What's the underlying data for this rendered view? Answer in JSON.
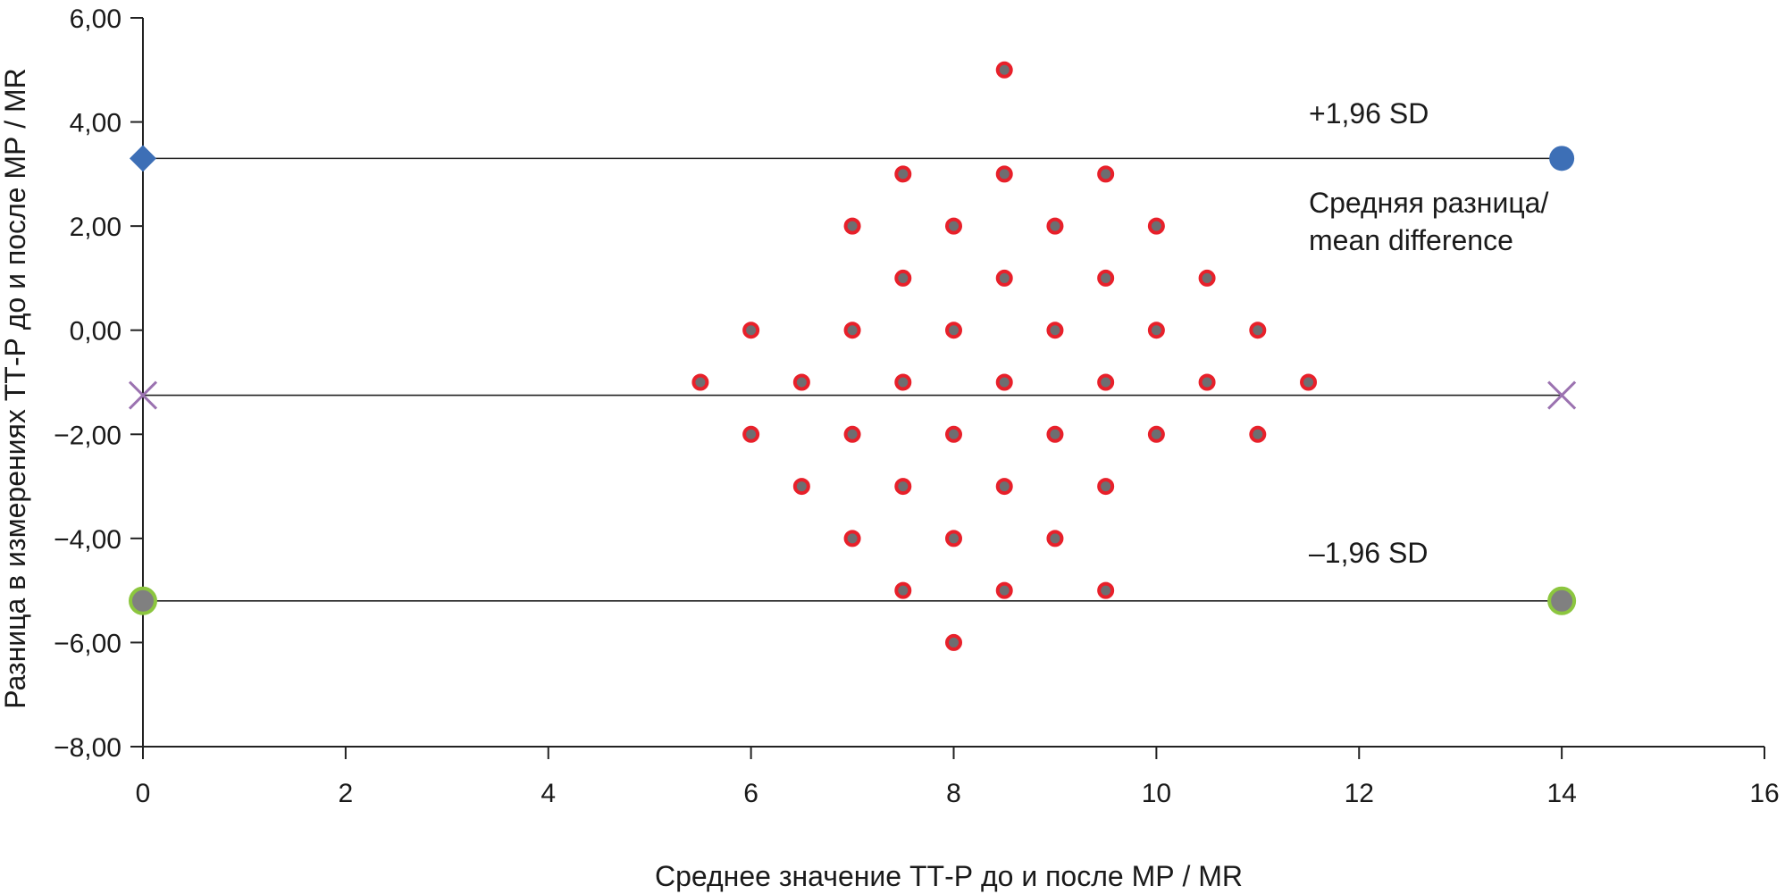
{
  "chart_data": {
    "type": "scatter",
    "title": "",
    "xlabel": "Среднее значение ТТ-Р до и после МР / MR",
    "ylabel": "Разница в измерениях ТТ-Р до и после МР / MR",
    "xlim": [
      0,
      16
    ],
    "ylim": [
      -8,
      6
    ],
    "x_ticks": [
      0,
      2,
      4,
      6,
      8,
      10,
      12,
      14,
      16
    ],
    "x_tick_labels": [
      "0",
      "2",
      "4",
      "6",
      "8",
      "10",
      "12",
      "14",
      "16"
    ],
    "y_ticks": [
      -8,
      -6,
      -4,
      -2,
      0,
      2,
      4,
      6
    ],
    "y_tick_labels": [
      "−8,00",
      "−6,00",
      "−4,00",
      "−2,00",
      "0,00",
      "2,00",
      "4,00",
      "6,00"
    ],
    "grid": false,
    "colors": {
      "point_fill": "#6d6e71",
      "point_stroke": "#e8202a",
      "upper_marker": "#3d6fb6",
      "mean_marker": "#9b72b0",
      "lower_marker_fill": "#808080",
      "lower_marker_stroke": "#8cc63f"
    },
    "points": [
      {
        "x": 8.5,
        "y": 5.0
      },
      {
        "x": 7.5,
        "y": 3.0
      },
      {
        "x": 8.5,
        "y": 3.0
      },
      {
        "x": 9.5,
        "y": 3.0
      },
      {
        "x": 7.0,
        "y": 2.0
      },
      {
        "x": 8.0,
        "y": 2.0
      },
      {
        "x": 9.0,
        "y": 2.0
      },
      {
        "x": 10.0,
        "y": 2.0
      },
      {
        "x": 7.5,
        "y": 1.0
      },
      {
        "x": 8.5,
        "y": 1.0
      },
      {
        "x": 9.5,
        "y": 1.0
      },
      {
        "x": 10.5,
        "y": 1.0
      },
      {
        "x": 6.0,
        "y": 0.0
      },
      {
        "x": 7.0,
        "y": 0.0
      },
      {
        "x": 8.0,
        "y": 0.0
      },
      {
        "x": 9.0,
        "y": 0.0
      },
      {
        "x": 10.0,
        "y": 0.0
      },
      {
        "x": 11.0,
        "y": 0.0
      },
      {
        "x": 5.5,
        "y": -1.0
      },
      {
        "x": 6.5,
        "y": -1.0
      },
      {
        "x": 7.5,
        "y": -1.0
      },
      {
        "x": 8.5,
        "y": -1.0
      },
      {
        "x": 9.5,
        "y": -1.0
      },
      {
        "x": 10.5,
        "y": -1.0
      },
      {
        "x": 11.5,
        "y": -1.0
      },
      {
        "x": 6.0,
        "y": -2.0
      },
      {
        "x": 7.0,
        "y": -2.0
      },
      {
        "x": 8.0,
        "y": -2.0
      },
      {
        "x": 9.0,
        "y": -2.0
      },
      {
        "x": 10.0,
        "y": -2.0
      },
      {
        "x": 11.0,
        "y": -2.0
      },
      {
        "x": 6.5,
        "y": -3.0
      },
      {
        "x": 7.5,
        "y": -3.0
      },
      {
        "x": 8.5,
        "y": -3.0
      },
      {
        "x": 9.5,
        "y": -3.0
      },
      {
        "x": 7.0,
        "y": -4.0
      },
      {
        "x": 8.0,
        "y": -4.0
      },
      {
        "x": 9.0,
        "y": -4.0
      },
      {
        "x": 7.5,
        "y": -5.0
      },
      {
        "x": 8.5,
        "y": -5.0
      },
      {
        "x": 9.5,
        "y": -5.0
      },
      {
        "x": 8.0,
        "y": -6.0
      }
    ],
    "reference_lines": [
      {
        "name": "upper",
        "y": 3.3,
        "x": [
          0,
          14
        ],
        "marker_start": "diamond",
        "marker_end": "circle",
        "label": "+1,96 SD"
      },
      {
        "name": "mean",
        "y": -1.25,
        "x": [
          0,
          14
        ],
        "marker_start": "cross",
        "marker_end": "cross",
        "label": "Средняя разница/\nmean difference"
      },
      {
        "name": "lower",
        "y": -5.2,
        "x": [
          0,
          14
        ],
        "marker_start": "circle",
        "marker_end": "circle",
        "label": "–1,96 SD"
      }
    ]
  }
}
